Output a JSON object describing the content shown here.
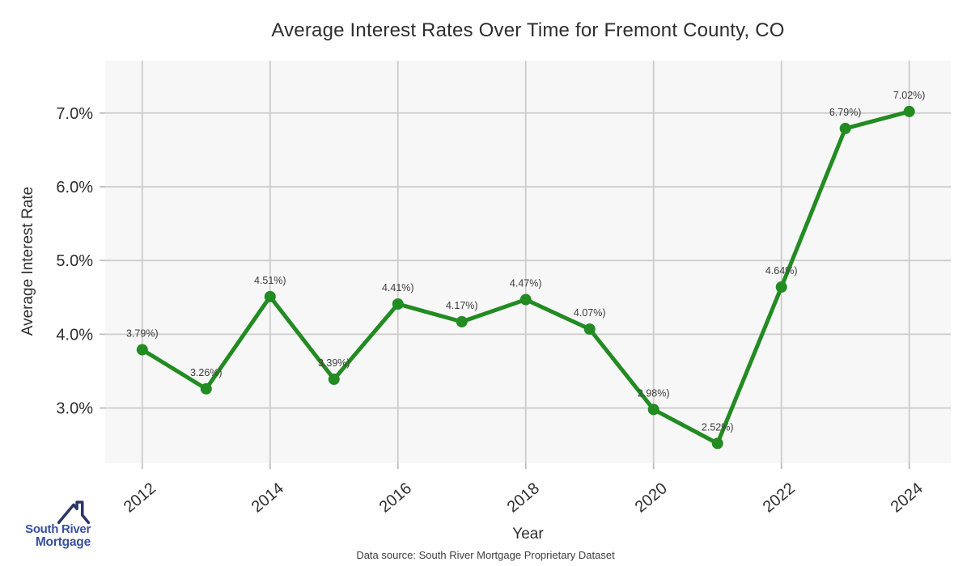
{
  "chart_data": {
    "type": "line",
    "title": "Average Interest Rates Over Time for Fremont County, CO",
    "x": [
      2012,
      2013,
      2014,
      2015,
      2016,
      2017,
      2018,
      2019,
      2020,
      2021,
      2022,
      2023,
      2024
    ],
    "values": [
      3.79,
      3.26,
      4.51,
      3.39,
      4.41,
      4.17,
      4.47,
      4.07,
      2.98,
      2.52,
      4.64,
      6.79,
      7.02
    ],
    "point_labels": [
      "3.79%)",
      "3.26%)",
      "4.51%)",
      "3.39%)",
      "4.41%)",
      "4.17%)",
      "4.47%)",
      "4.07%)",
      "2.98%)",
      "2.52%)",
      "4.64%)",
      "6.79%)",
      "7.02%)"
    ],
    "xlabel": "Year",
    "ylabel": "Average Interest Rate",
    "xticks": [
      2012,
      2014,
      2016,
      2018,
      2020,
      2022,
      2024
    ],
    "xtick_labels": [
      "2012",
      "2014",
      "2016",
      "2018",
      "2020",
      "2022",
      "2024"
    ],
    "yticks": [
      3,
      4,
      5,
      6,
      7
    ],
    "ytick_labels": [
      "3.0%",
      "4.0%",
      "5.0%",
      "6.0%",
      "7.0%"
    ],
    "xlim": [
      2011.42,
      2024.65
    ],
    "ylim": [
      2.25,
      7.71
    ],
    "grid": true,
    "legend": false,
    "line_color": "#228B22",
    "marker": "circle",
    "plot_bg": "#f7f7f7",
    "grid_color": "#cccccc",
    "tick_color": "#bdbdbd"
  },
  "footer": {
    "data_source": "Data source: South River Mortgage Proprietary Dataset"
  },
  "logo": {
    "line1": "South River",
    "line2": "Mortgage",
    "text_color": "#3a50a0",
    "roof_color": "#2b3565"
  }
}
